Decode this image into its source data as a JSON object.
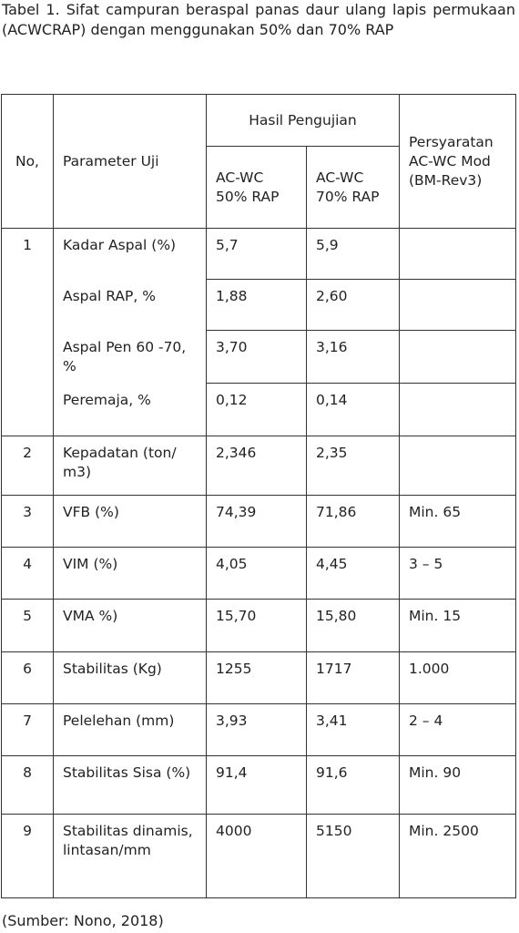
{
  "caption": "Tabel 1.  Sifat campuran beraspal panas daur ulang lapis permukaan (ACWCRAP) dengan menggunakan 50% dan 70% RAP",
  "table": {
    "header": {
      "no": "No,",
      "parameter": "Parameter Uji",
      "group": "Hasil Pengujian",
      "col1": "AC-WC 50% RAP",
      "col2": "AC-WC 70% RAP",
      "requirement": "Persyaratan AC-WC Mod (BM-Rev3)"
    },
    "rows": [
      {
        "no": "1",
        "items": [
          [
            "Kadar Aspal (%)",
            "5,7",
            "5,9"
          ],
          [
            "Aspal RAP, %",
            "1,88",
            "2,60"
          ],
          [
            "Aspal Pen 60 -70, %",
            "3,70",
            "3,16"
          ],
          [
            "Peremaja, %",
            "0,12",
            "0,14"
          ]
        ]
      },
      {
        "no": "2",
        "items": [
          [
            "Kepadatan (ton/ m3)",
            "2,346",
            "2,35"
          ]
        ]
      },
      {
        "no": "3",
        "items": [
          [
            "VFB (%)",
            "74,39",
            "71,86",
            "Min. 65"
          ]
        ]
      },
      {
        "no": "4",
        "items": [
          [
            "VIM (%)",
            "4,05",
            "4,45",
            "3 – 5"
          ]
        ]
      },
      {
        "no": "5",
        "items": [
          [
            "VMA %)",
            "15,70",
            "15,80",
            "Min. 15"
          ]
        ]
      },
      {
        "no": "6",
        "items": [
          [
            "Stabilitas (Kg)",
            "1255",
            "1717",
            "1.000"
          ]
        ]
      },
      {
        "no": "7",
        "items": [
          [
            "Pelelehan (mm)",
            "3,93",
            "3,41",
            "2 – 4"
          ]
        ]
      },
      {
        "no": "8",
        "items": [
          [
            "Stabilitas Sisa (%)",
            "91,4",
            "91,6",
            "Min. 90"
          ]
        ]
      },
      {
        "no": "9",
        "items": [
          [
            "Stabilitas dinamis, lintasan/mm",
            "4000",
            "5150",
            "Min. 2500"
          ]
        ]
      }
    ]
  },
  "source": "(Sumber: Nono, 2018)"
}
